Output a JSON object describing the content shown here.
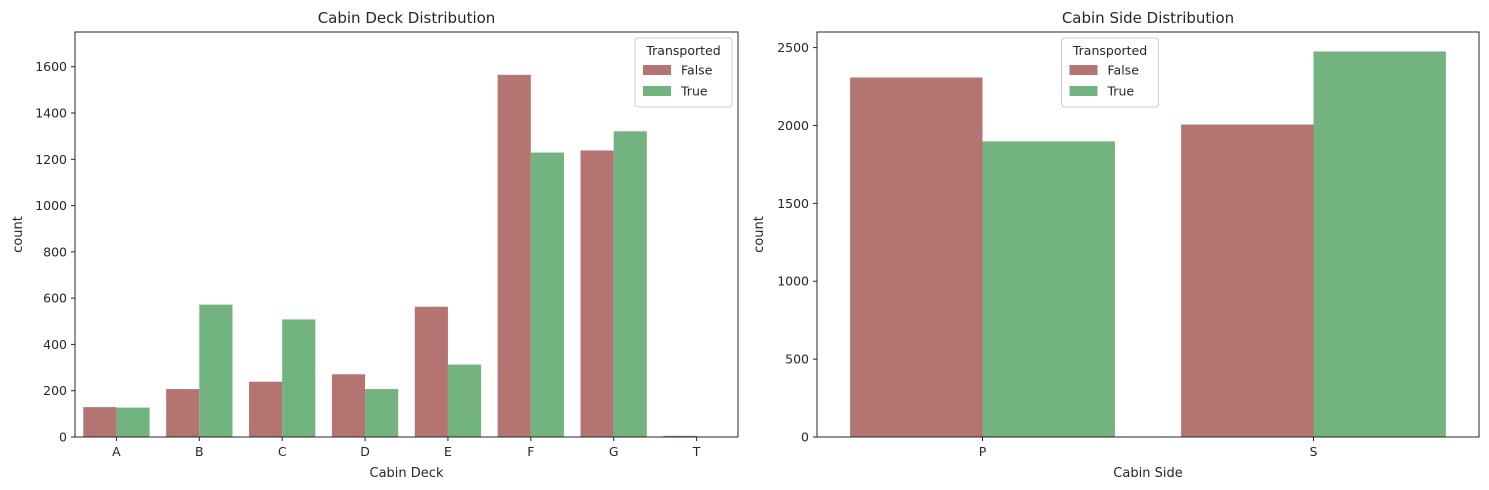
{
  "chart_data": [
    {
      "type": "bar",
      "title": "Cabin Deck Distribution",
      "xlabel": "Cabin Deck",
      "ylabel": "count",
      "categories": [
        "A",
        "B",
        "C",
        "D",
        "E",
        "F",
        "G",
        "T"
      ],
      "ylim": [
        0,
        1750
      ],
      "yticks": [
        0,
        200,
        400,
        600,
        800,
        1000,
        1200,
        1400,
        1600
      ],
      "legend": {
        "title": "Transported",
        "placement": "top-right"
      },
      "series": [
        {
          "name": "False",
          "color": "#b37472",
          "values": [
            129,
            207,
            239,
            271,
            563,
            1565,
            1238,
            5
          ]
        },
        {
          "name": "True",
          "color": "#73b37f",
          "values": [
            127,
            572,
            508,
            207,
            313,
            1229,
            1321,
            1
          ]
        }
      ]
    },
    {
      "type": "bar",
      "title": "Cabin Side Distribution",
      "xlabel": "Cabin Side",
      "ylabel": "count",
      "categories": [
        "P",
        "S"
      ],
      "ylim": [
        0,
        2600
      ],
      "yticks": [
        0,
        500,
        1000,
        1500,
        2000,
        2500
      ],
      "legend": {
        "title": "Transported",
        "placement": "upper-center"
      },
      "series": [
        {
          "name": "False",
          "color": "#b37472",
          "values": [
            2308,
            2006
          ]
        },
        {
          "name": "True",
          "color": "#73b37f",
          "values": [
            1898,
            2475
          ]
        }
      ]
    }
  ]
}
